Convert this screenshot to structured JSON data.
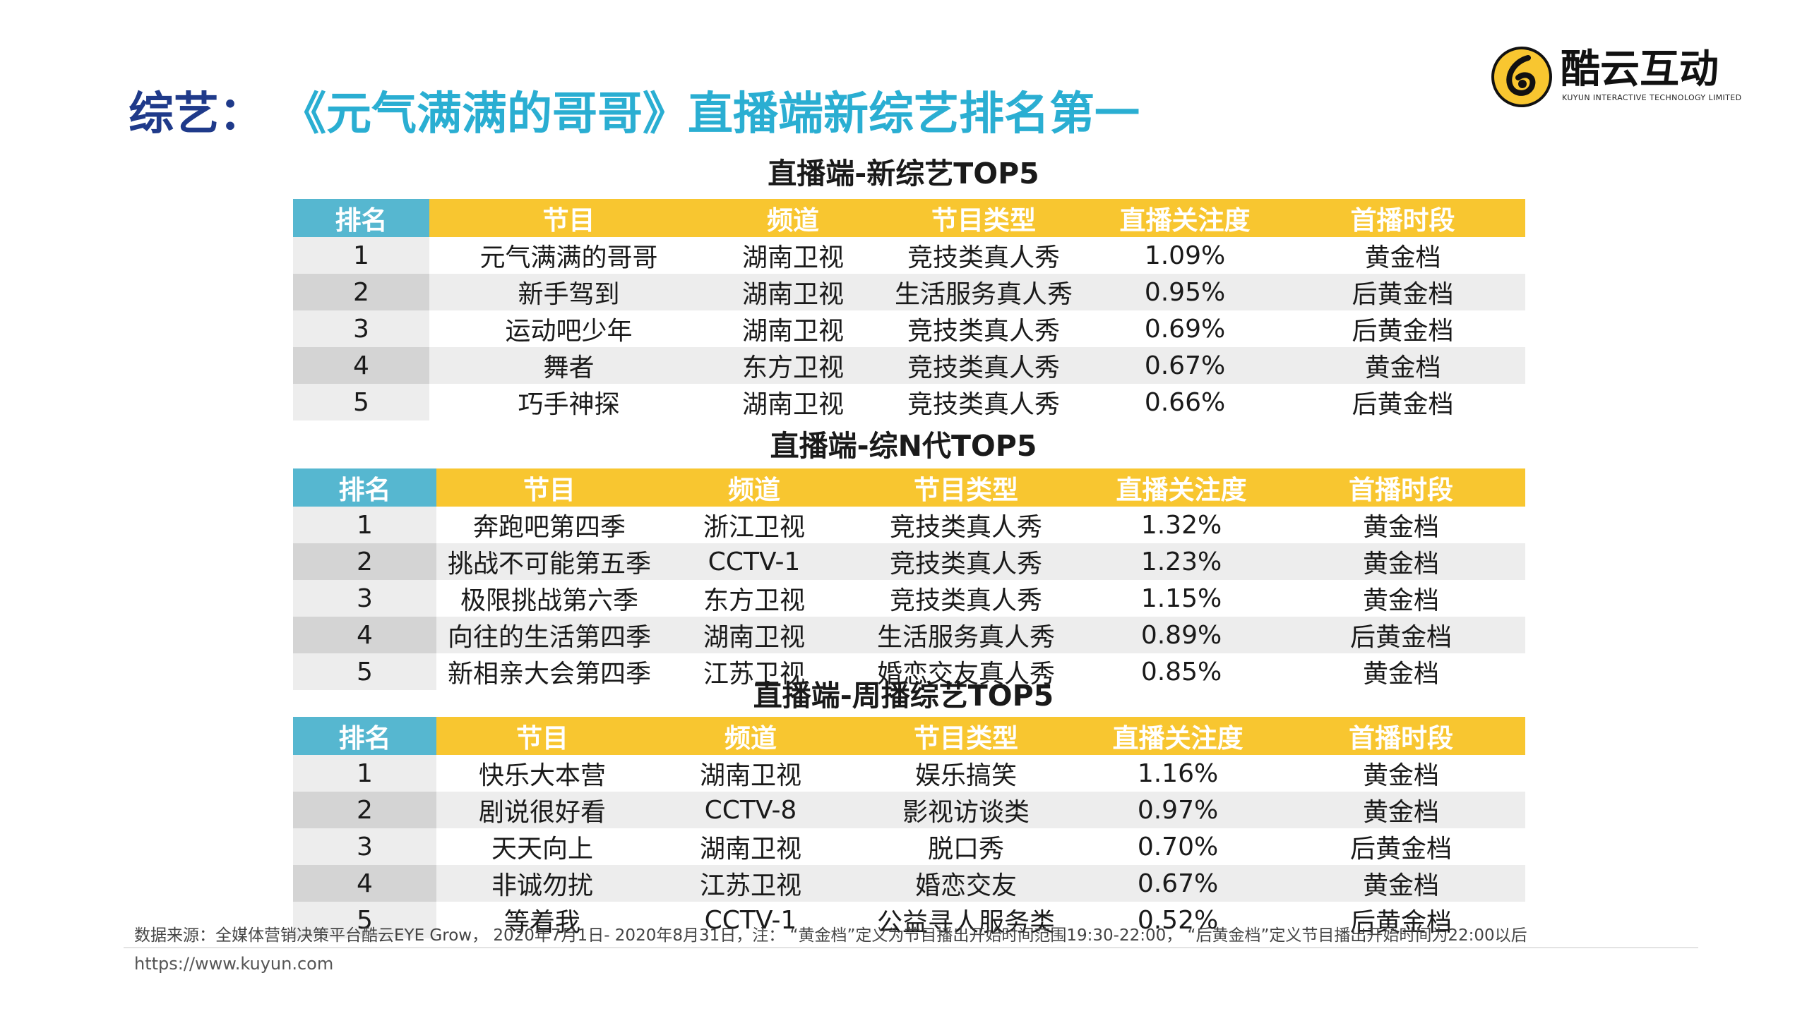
{
  "title": {
    "prefix": "综艺：",
    "main": "《元气满满的哥哥》直播端新综艺排名第一"
  },
  "logo": {
    "name": "酷云互动",
    "subtitle": "KUYUN INTERACTIVE TECHNOLOGY LIMITED",
    "mark_color": "#f8c630"
  },
  "colors": {
    "rank_header": "#56b7d0",
    "header": "#f8c630",
    "title_prefix": "#1f3a8a",
    "title_main": "#2aaed2"
  },
  "tables": [
    {
      "caption": "直播端-新综艺TOP5",
      "headers": [
        "排名",
        "节目",
        "频道",
        "节目类型",
        "直播关注度",
        "首播时段"
      ],
      "rows": [
        [
          "1",
          "元气满满的哥哥",
          "湖南卫视",
          "竞技类真人秀",
          "1.09%",
          "黄金档"
        ],
        [
          "2",
          "新手驾到",
          "湖南卫视",
          "生活服务真人秀",
          "0.95%",
          "后黄金档"
        ],
        [
          "3",
          "运动吧少年",
          "湖南卫视",
          "竞技类真人秀",
          "0.69%",
          "后黄金档"
        ],
        [
          "4",
          "舞者",
          "东方卫视",
          "竞技类真人秀",
          "0.67%",
          "黄金档"
        ],
        [
          "5",
          "巧手神探",
          "湖南卫视",
          "竞技类真人秀",
          "0.66%",
          "后黄金档"
        ]
      ]
    },
    {
      "caption": "直播端-综N代TOP5",
      "headers": [
        "排名",
        "节目",
        "频道",
        "节目类型",
        "直播关注度",
        "首播时段"
      ],
      "rows": [
        [
          "1",
          "奔跑吧第四季",
          "浙江卫视",
          "竞技类真人秀",
          "1.32%",
          "黄金档"
        ],
        [
          "2",
          "挑战不可能第五季",
          "CCTV-1",
          "竞技类真人秀",
          "1.23%",
          "黄金档"
        ],
        [
          "3",
          "极限挑战第六季",
          "东方卫视",
          "竞技类真人秀",
          "1.15%",
          "黄金档"
        ],
        [
          "4",
          "向往的生活第四季",
          "湖南卫视",
          "生活服务真人秀",
          "0.89%",
          "后黄金档"
        ],
        [
          "5",
          "新相亲大会第四季",
          "江苏卫视",
          "婚恋交友真人秀",
          "0.85%",
          "黄金档"
        ]
      ]
    },
    {
      "caption": "直播端-周播综艺TOP5",
      "headers": [
        "排名",
        "节目",
        "频道",
        "节目类型",
        "直播关注度",
        "首播时段"
      ],
      "rows": [
        [
          "1",
          "快乐大本营",
          "湖南卫视",
          "娱乐搞笑",
          "1.16%",
          "黄金档"
        ],
        [
          "2",
          "剧说很好看",
          "CCTV-8",
          "影视访谈类",
          "0.97%",
          "黄金档"
        ],
        [
          "3",
          "天天向上",
          "湖南卫视",
          "脱口秀",
          "0.70%",
          "后黄金档"
        ],
        [
          "4",
          "非诚勿扰",
          "江苏卫视",
          "婚恋交友",
          "0.67%",
          "黄金档"
        ],
        [
          "5",
          "等着我",
          "CCTV-1",
          "公益寻人服务类",
          "0.52%",
          "后黄金档"
        ]
      ]
    }
  ],
  "footnote": "数据来源：全媒体营销决策平台酷云EYE Grow，  2020年7月1日- 2020年8月31日，注：  “黄金档”定义为节目播出开始时间范围19:30-22:00，  “后黄金档”定义节目播出开始时间为22:00以后",
  "website": "https://www.kuyun.com"
}
